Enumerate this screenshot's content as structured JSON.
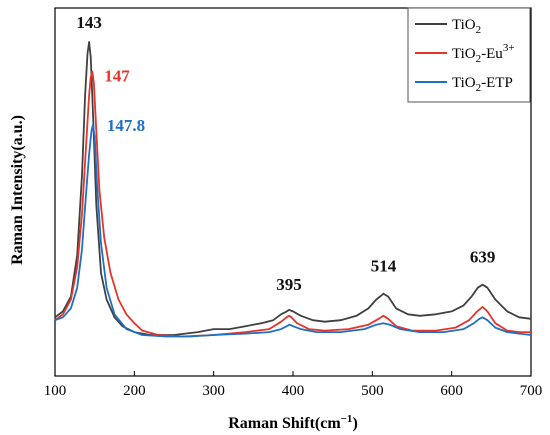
{
  "chart_data": {
    "type": "line",
    "title": "",
    "xlabel": "Raman Shift(cm",
    "xlabel_sup": "−1",
    "xlabel_end": ")",
    "ylabel": "Raman Intensity(a.u.)",
    "xlim": [
      100,
      700
    ],
    "ylim": [
      0,
      1
    ],
    "xticks": [
      100,
      200,
      300,
      400,
      500,
      600,
      700
    ],
    "yticks_shown": false,
    "grid": false,
    "legend_position": "top-right",
    "series": [
      {
        "name_main": "TiO",
        "name_sub": "2",
        "name_tail": "",
        "name_sup": "",
        "color": "#404040",
        "x": [
          100,
          110,
          120,
          128,
          134,
          138,
          141,
          143,
          145,
          148,
          152,
          158,
          165,
          175,
          185,
          200,
          220,
          250,
          280,
          300,
          320,
          340,
          360,
          375,
          385,
          392,
          395,
          400,
          410,
          425,
          440,
          460,
          480,
          495,
          505,
          512,
          514,
          520,
          530,
          545,
          560,
          580,
          600,
          615,
          625,
          633,
          639,
          645,
          655,
          670,
          685,
          700
        ],
        "y": [
          0.07,
          0.09,
          0.14,
          0.28,
          0.55,
          0.82,
          0.96,
          1.0,
          0.95,
          0.75,
          0.45,
          0.22,
          0.13,
          0.07,
          0.04,
          0.02,
          0.01,
          0.01,
          0.02,
          0.03,
          0.03,
          0.04,
          0.05,
          0.06,
          0.08,
          0.09,
          0.095,
          0.09,
          0.075,
          0.06,
          0.055,
          0.06,
          0.075,
          0.1,
          0.13,
          0.145,
          0.15,
          0.14,
          0.1,
          0.08,
          0.075,
          0.08,
          0.09,
          0.11,
          0.14,
          0.17,
          0.18,
          0.17,
          0.13,
          0.09,
          0.07,
          0.065
        ]
      },
      {
        "name_main": "TiO",
        "name_sub": "2",
        "name_tail": "-Eu",
        "name_sup": "3+",
        "color": "#e8332a",
        "x": [
          100,
          110,
          120,
          128,
          134,
          139,
          143,
          145,
          147,
          149,
          152,
          156,
          162,
          170,
          180,
          190,
          200,
          210,
          230,
          260,
          300,
          340,
          370,
          385,
          392,
          395,
          398,
          405,
          420,
          440,
          470,
          495,
          508,
          514,
          520,
          530,
          550,
          580,
          605,
          622,
          632,
          639,
          645,
          655,
          670,
          685,
          700
        ],
        "y": [
          0.06,
          0.08,
          0.13,
          0.24,
          0.42,
          0.64,
          0.82,
          0.88,
          0.9,
          0.86,
          0.7,
          0.5,
          0.34,
          0.22,
          0.13,
          0.08,
          0.05,
          0.025,
          0.01,
          0.005,
          0.01,
          0.02,
          0.03,
          0.055,
          0.07,
          0.075,
          0.07,
          0.05,
          0.03,
          0.025,
          0.03,
          0.045,
          0.065,
          0.075,
          0.065,
          0.04,
          0.025,
          0.025,
          0.035,
          0.06,
          0.09,
          0.105,
          0.09,
          0.05,
          0.025,
          0.02,
          0.02
        ]
      },
      {
        "name_main": "TiO",
        "name_sub": "2",
        "name_tail": "-ETP",
        "name_sup": "",
        "color": "#1f6fc4",
        "x": [
          100,
          110,
          120,
          128,
          134,
          139,
          143,
          146,
          147.8,
          150,
          153,
          158,
          165,
          175,
          190,
          210,
          240,
          270,
          300,
          340,
          370,
          385,
          392,
          396,
          400,
          410,
          430,
          460,
          490,
          505,
          514,
          522,
          535,
          560,
          590,
          615,
          628,
          635,
          639,
          645,
          655,
          670,
          685,
          700
        ],
        "y": [
          0.06,
          0.07,
          0.1,
          0.17,
          0.3,
          0.48,
          0.62,
          0.7,
          0.72,
          0.68,
          0.52,
          0.32,
          0.17,
          0.08,
          0.03,
          0.01,
          0.005,
          0.005,
          0.01,
          0.015,
          0.02,
          0.03,
          0.04,
          0.045,
          0.04,
          0.03,
          0.02,
          0.02,
          0.03,
          0.045,
          0.05,
          0.045,
          0.03,
          0.02,
          0.02,
          0.03,
          0.05,
          0.065,
          0.07,
          0.06,
          0.035,
          0.02,
          0.015,
          0.01
        ]
      }
    ],
    "annotations": [
      {
        "text": "143",
        "x": 143,
        "y": 1.0,
        "color": "#111111"
      },
      {
        "text": "147",
        "x": 147,
        "y": 0.9,
        "color": "#e8332a"
      },
      {
        "text": "147.8",
        "x": 147.8,
        "y": 0.72,
        "color": "#1f6fc4"
      },
      {
        "text": "395",
        "x": 395,
        "y": 0.095,
        "color": "#111111"
      },
      {
        "text": "514",
        "x": 514,
        "y": 0.15,
        "color": "#111111"
      },
      {
        "text": "639",
        "x": 639,
        "y": 0.18,
        "color": "#111111"
      }
    ]
  }
}
